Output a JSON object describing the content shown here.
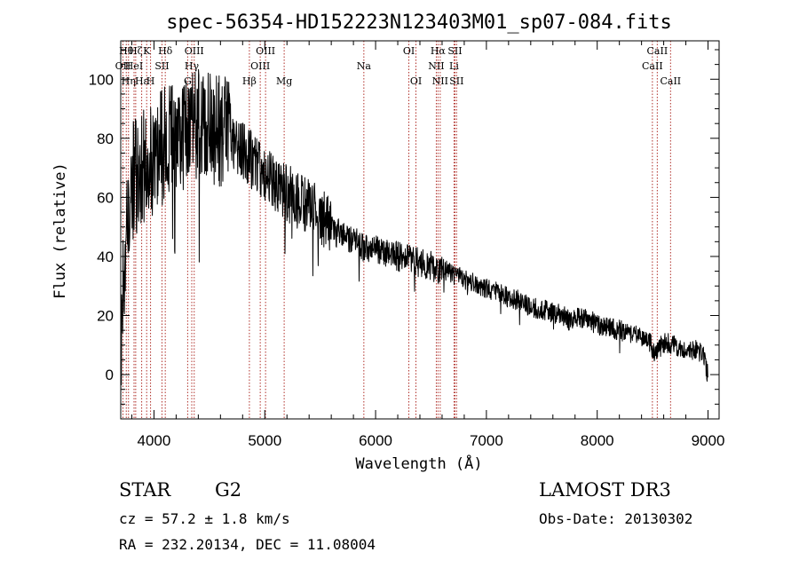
{
  "chart_data": {
    "type": "line",
    "title": "spec-56354-HD152223N123403M01_sp07-084.fits",
    "xlabel": "Wavelength (Å)",
    "ylabel": "Flux (relative)",
    "xlim": [
      3700,
      9100
    ],
    "ylim": [
      -15,
      113
    ],
    "xticks": [
      4000,
      5000,
      6000,
      7000,
      8000,
      9000
    ],
    "yticks": [
      0,
      20,
      40,
      60,
      80,
      100
    ],
    "line_color": "#000000",
    "marker_color": "#b0302a",
    "envelope": {
      "x": [
        3700,
        3720,
        3760,
        3800,
        3850,
        3900,
        3950,
        4000,
        4050,
        4100,
        4150,
        4200,
        4250,
        4300,
        4350,
        4400,
        4450,
        4500,
        4550,
        4600,
        4650,
        4700,
        4800,
        4900,
        5000,
        5100,
        5200,
        5300,
        5400,
        5500,
        5600,
        5650,
        5700,
        5800,
        5900,
        6000,
        6100,
        6200,
        6300,
        6400,
        6500,
        6560,
        6600,
        6700,
        6800,
        6900,
        7000,
        7100,
        7200,
        7300,
        7400,
        7500,
        7600,
        7700,
        7780,
        7800,
        7900,
        8000,
        8100,
        8200,
        8300,
        8400,
        8480,
        8500,
        8540,
        8600,
        8700,
        8800,
        8900,
        8960,
        9000
      ],
      "y": [
        5,
        30,
        55,
        65,
        68,
        70,
        72,
        74,
        76,
        78,
        79,
        80,
        81,
        82,
        83,
        84,
        84,
        84,
        83,
        82,
        81,
        80,
        76,
        72,
        68,
        64,
        62,
        59,
        56,
        54,
        50,
        48,
        47,
        45,
        43,
        42,
        41,
        40,
        39,
        38,
        37,
        34,
        36,
        34,
        32,
        31,
        29,
        28,
        26,
        25,
        23,
        22,
        21,
        20,
        17,
        20,
        19,
        17,
        16,
        15,
        14,
        13,
        11,
        7,
        8,
        11,
        10,
        9,
        8,
        7,
        0
      ],
      "noise": [
        {
          "to": 3800,
          "amp": 18
        },
        {
          "to": 4700,
          "amp": 20
        },
        {
          "to": 5600,
          "amp": 10
        },
        {
          "to": 6600,
          "amp": 5
        },
        {
          "to": 9100,
          "amp": 3.5
        }
      ],
      "step": 3,
      "seed": 17
    },
    "lines": [
      {
        "x": 3720,
        "labels": [
          {
            "text": "OII",
            "row": 2
          }
        ]
      },
      {
        "x": 3750,
        "labels": [
          {
            "text": "Hθ",
            "row": 1
          }
        ]
      },
      {
        "x": 3770,
        "labels": [
          {
            "text": "Hη",
            "row": 3
          }
        ]
      },
      {
        "x": 3820,
        "labels": [
          {
            "text": "HeI",
            "row": 2
          }
        ]
      },
      {
        "x": 3835,
        "labels": [
          {
            "text": "Hζ",
            "row": 1
          }
        ]
      },
      {
        "x": 3889,
        "labels": [
          {
            "text": "Hε",
            "row": 3
          }
        ]
      },
      {
        "x": 3934,
        "labels": [
          {
            "text": "K",
            "row": 1
          }
        ]
      },
      {
        "x": 3969,
        "labels": [
          {
            "text": "H",
            "row": 3
          }
        ]
      },
      {
        "x": 4072,
        "labels": [
          {
            "text": "SII",
            "row": 2
          }
        ]
      },
      {
        "x": 4102,
        "labels": [
          {
            "text": "Hδ",
            "row": 1
          }
        ]
      },
      {
        "x": 4304,
        "labels": [
          {
            "text": "G",
            "row": 3
          }
        ]
      },
      {
        "x": 4341,
        "labels": [
          {
            "text": "Hγ",
            "row": 2
          }
        ]
      },
      {
        "x": 4363,
        "labels": [
          {
            "text": "OIII",
            "row": 1
          }
        ]
      },
      {
        "x": 4861,
        "labels": [
          {
            "text": "Hβ",
            "row": 3
          }
        ]
      },
      {
        "x": 4959,
        "labels": [
          {
            "text": "OIII",
            "row": 2
          }
        ]
      },
      {
        "x": 5007,
        "labels": [
          {
            "text": "OIII",
            "row": 1
          }
        ]
      },
      {
        "x": 5175,
        "labels": [
          {
            "text": "Mg",
            "row": 3
          }
        ]
      },
      {
        "x": 5894,
        "labels": [
          {
            "text": "Na",
            "row": 2
          }
        ]
      },
      {
        "x": 6300,
        "labels": [
          {
            "text": "OI",
            "row": 1
          }
        ]
      },
      {
        "x": 6364,
        "labels": [
          {
            "text": "OI",
            "row": 3
          }
        ]
      },
      {
        "x": 6548,
        "labels": [
          {
            "text": "NII",
            "row": 2
          }
        ]
      },
      {
        "x": 6563,
        "labels": [
          {
            "text": "Hα",
            "row": 1
          }
        ]
      },
      {
        "x": 6583,
        "labels": [
          {
            "text": "NII",
            "row": 3
          }
        ]
      },
      {
        "x": 6708,
        "labels": [
          {
            "text": "Li",
            "row": 2
          }
        ]
      },
      {
        "x": 6716,
        "labels": [
          {
            "text": "SII",
            "row": 1
          }
        ]
      },
      {
        "x": 6731,
        "labels": [
          {
            "text": "SII",
            "row": 3
          }
        ]
      },
      {
        "x": 8498,
        "labels": [
          {
            "text": "CaII",
            "row": 2
          }
        ]
      },
      {
        "x": 8542,
        "labels": [
          {
            "text": "CaII",
            "row": 1
          }
        ]
      },
      {
        "x": 8662,
        "labels": [
          {
            "text": "CaII",
            "row": 3
          }
        ]
      }
    ]
  },
  "info": {
    "object_class": "STAR",
    "subclass": "G2",
    "survey": "LAMOST DR3",
    "redshift_line": "cz = 57.2 ± 1.8 km/s",
    "obs_date_line": "Obs-Date: 20130302",
    "coords_line": "RA = 232.20134, DEC =  11.08004"
  }
}
